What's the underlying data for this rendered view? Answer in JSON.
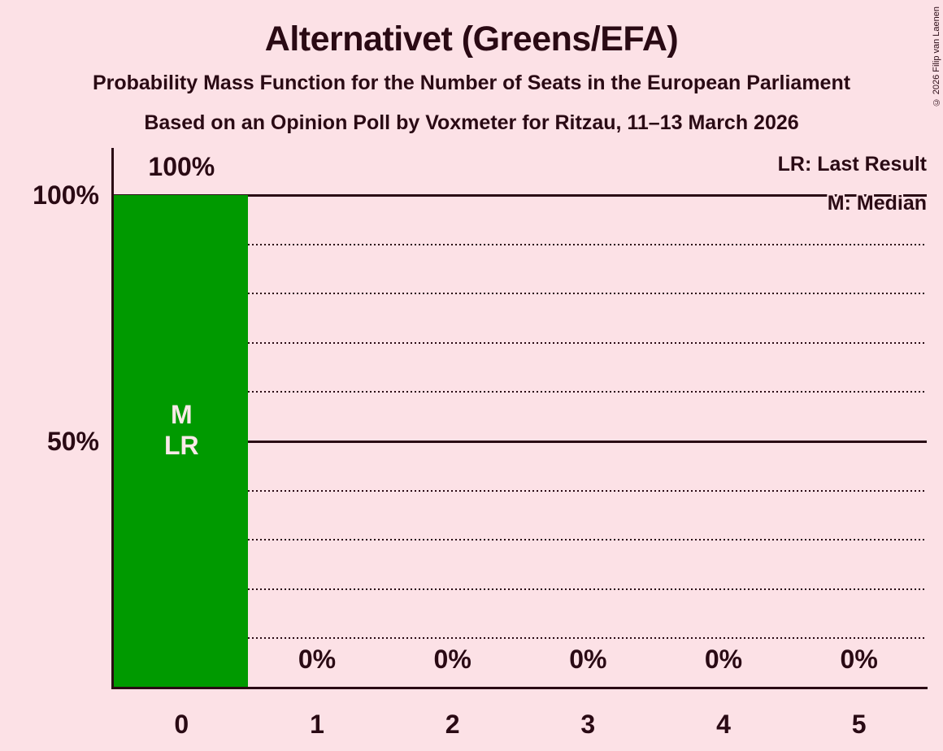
{
  "header": {
    "title": "Alternativet (Greens/EFA)",
    "subtitle1": "Probability Mass Function for the Number of Seats in the European Parliament",
    "subtitle2": "Based on an Opinion Poll by Voxmeter for Ritzau, 11–13 March 2026"
  },
  "copyright": "© 2026 Filip van Laenen",
  "legend": {
    "last_result": "LR: Last Result",
    "median": "M: Median"
  },
  "colors": {
    "background": "#FCE1E6",
    "bar": "#009A00",
    "text": "#2A0A14",
    "bar_label": "#FAE9E9"
  },
  "chart_data": {
    "type": "bar",
    "title": "Alternativet (Greens/EFA)",
    "xlabel": "",
    "ylabel": "",
    "categories": [
      "0",
      "1",
      "2",
      "3",
      "4",
      "5"
    ],
    "values": [
      100,
      0,
      0,
      0,
      0,
      0
    ],
    "value_labels": [
      "100%",
      "0%",
      "0%",
      "0%",
      "0%",
      "0%"
    ],
    "annotations": [
      {
        "category": "0",
        "lines": [
          "M",
          "LR"
        ]
      }
    ],
    "median_seat": "0",
    "last_result_seat": "0",
    "y_ticks": [
      {
        "label": "100%",
        "value": 100
      },
      {
        "label": "50%",
        "value": 50
      }
    ],
    "solid_gridlines": [
      100,
      50
    ],
    "dotted_gridlines": [
      90,
      80,
      70,
      60,
      40,
      30,
      20,
      10
    ],
    "ylim": [
      0,
      100
    ],
    "grid": "horizontal-only",
    "legend_position": "top-right"
  }
}
